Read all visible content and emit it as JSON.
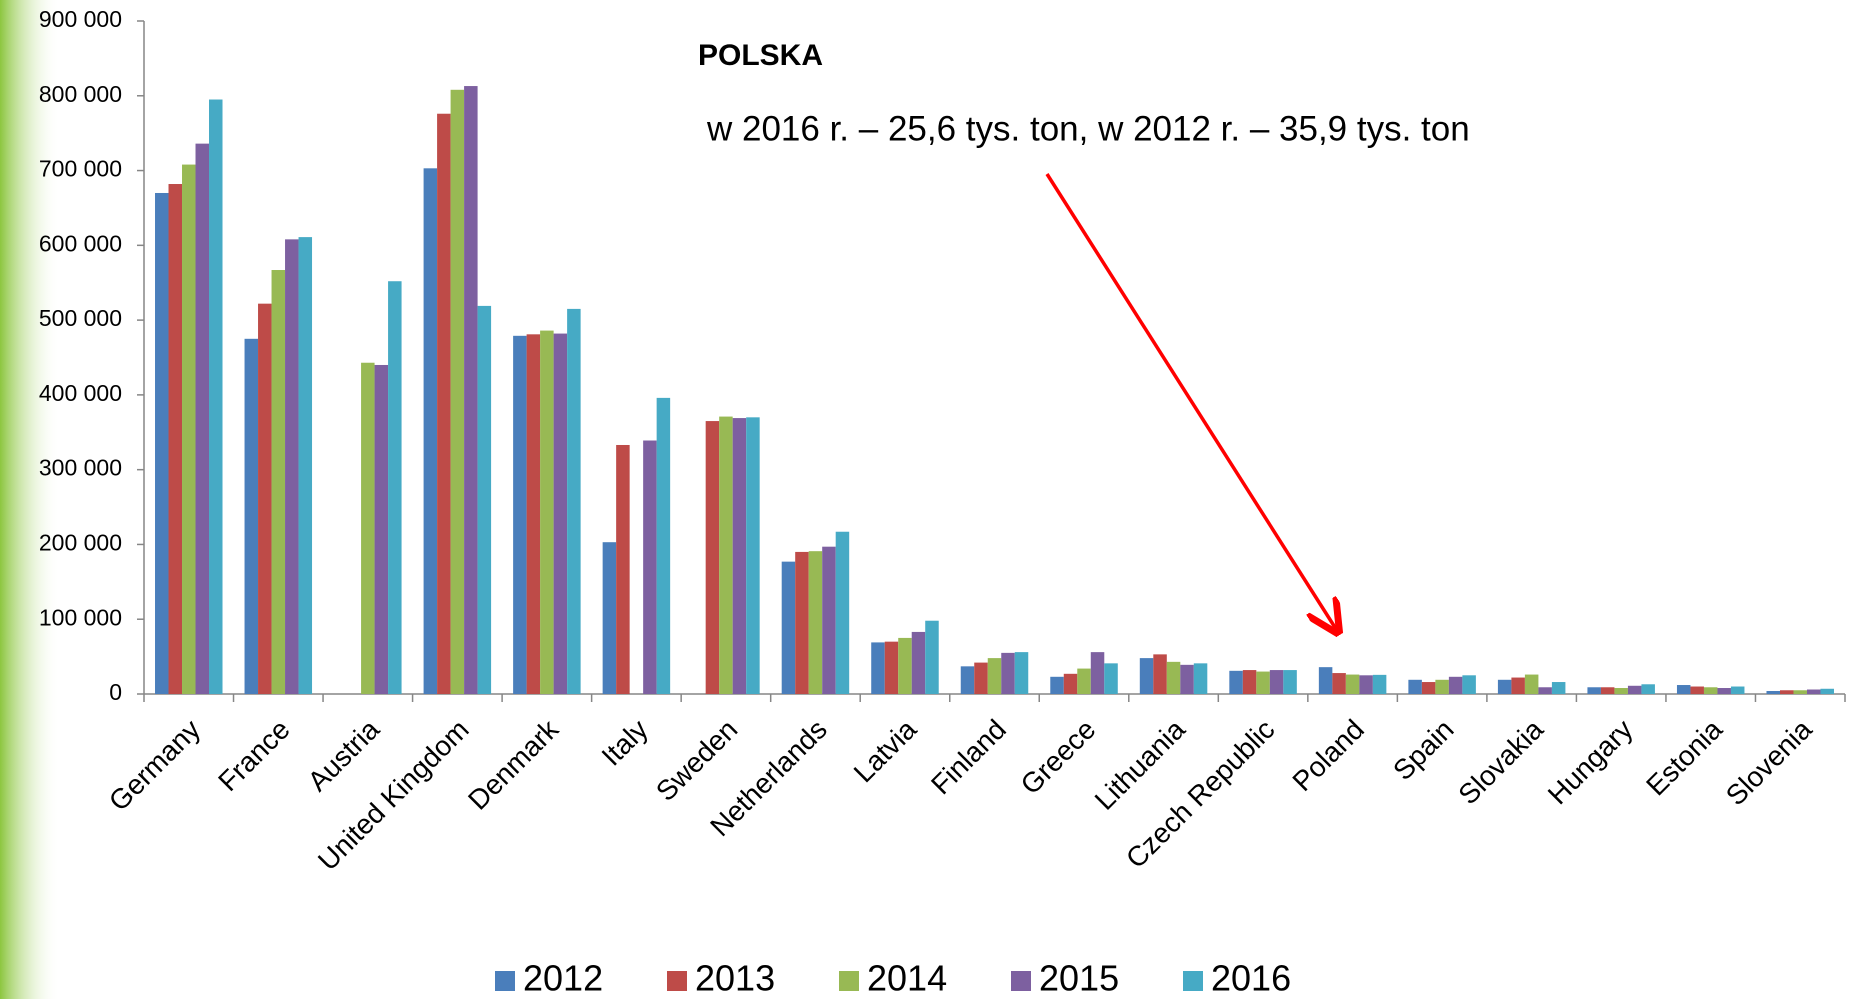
{
  "chart_data": {
    "type": "bar",
    "title": "POLSKA",
    "annotation": "w 2016 r. – 25,6 tys. ton, w 2012 r. – 35,9 tys. ton",
    "categories": [
      "Germany",
      "France",
      "Austria",
      "United Kingdom",
      "Denmark",
      "Italy",
      "Sweden",
      "Netherlands",
      "Latvia",
      "Finland",
      "Greece",
      "Lithuania",
      "Czech Republic",
      "Poland",
      "Spain",
      "Slovakia",
      "Hungary",
      "Estonia",
      "Slovenia"
    ],
    "series": [
      {
        "name": "2012",
        "color": "#4a7ebb",
        "values": [
          670000,
          475000,
          null,
          703000,
          479000,
          203000,
          null,
          177000,
          69000,
          37000,
          23000,
          48000,
          31000,
          35900,
          19000,
          19000,
          9000,
          12000,
          4000
        ]
      },
      {
        "name": "2013",
        "color": "#be4b48",
        "values": [
          682000,
          522000,
          null,
          776000,
          481000,
          333000,
          365000,
          190000,
          70000,
          42000,
          27000,
          53000,
          32000,
          28000,
          16000,
          22000,
          9000,
          10000,
          5000
        ]
      },
      {
        "name": "2014",
        "color": "#98b954",
        "values": [
          708000,
          567000,
          443000,
          808000,
          486000,
          null,
          371000,
          191000,
          75000,
          48000,
          34000,
          43000,
          30000,
          26000,
          19000,
          26000,
          8000,
          9000,
          5000
        ]
      },
      {
        "name": "2015",
        "color": "#7d60a0",
        "values": [
          736000,
          608000,
          440000,
          813000,
          482000,
          339000,
          369000,
          197000,
          83000,
          55000,
          56000,
          39000,
          32000,
          25000,
          23000,
          9000,
          11000,
          8000,
          6000
        ]
      },
      {
        "name": "2016",
        "color": "#46aac5",
        "values": [
          795000,
          611000,
          552000,
          519000,
          515000,
          396000,
          370000,
          217000,
          98000,
          56000,
          41000,
          41000,
          32000,
          25600,
          25000,
          16000,
          13000,
          10000,
          7000
        ]
      }
    ],
    "ylim": [
      0,
      900000
    ],
    "yticks": [
      0,
      {
        "value": 100000,
        "label": "100 000"
      },
      {
        "value": 200000,
        "label": "200 000"
      },
      {
        "value": 300000,
        "label": "300 000"
      },
      {
        "value": 400000,
        "label": "400 000"
      },
      {
        "value": 500000,
        "label": "500 000"
      },
      {
        "value": 600000,
        "label": "600 000"
      },
      {
        "value": 700000,
        "label": "700 000"
      },
      {
        "value": 800000,
        "label": "800 000"
      },
      {
        "value": 900000,
        "label": "900 000"
      }
    ],
    "legend": "bottom"
  }
}
